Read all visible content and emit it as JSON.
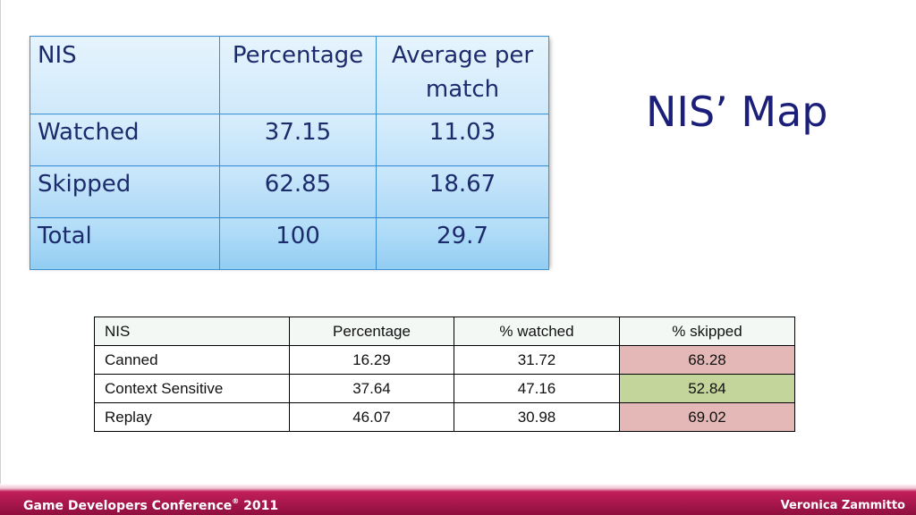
{
  "title": "NIS’ Map",
  "table_top": {
    "header": [
      "NIS",
      "Percentage",
      "Average per match"
    ],
    "rows": [
      [
        "Watched",
        "37.15",
        "11.03"
      ],
      [
        "Skipped",
        "62.85",
        "18.67"
      ],
      [
        "Total",
        "100",
        "29.7"
      ]
    ]
  },
  "table_bottom": {
    "header": [
      "NIS",
      "Percentage",
      "% watched",
      "% skipped"
    ],
    "rows": [
      [
        "Canned",
        "16.29",
        "31.72",
        "68.28"
      ],
      [
        "Context Sensitive",
        "37.64",
        "47.16",
        "52.84"
      ],
      [
        "Replay",
        "46.07",
        "30.98",
        "69.02"
      ]
    ],
    "highlight_colors": {
      "high_skip": "#e4b8b6",
      "low_skip": "#c3d59a"
    }
  },
  "footer": {
    "conference": "Game Developers Conference",
    "registered_mark": "®",
    "year": " 2011",
    "author": "Veronica Zammitto",
    "colors": {
      "band": "#a8144a"
    }
  }
}
